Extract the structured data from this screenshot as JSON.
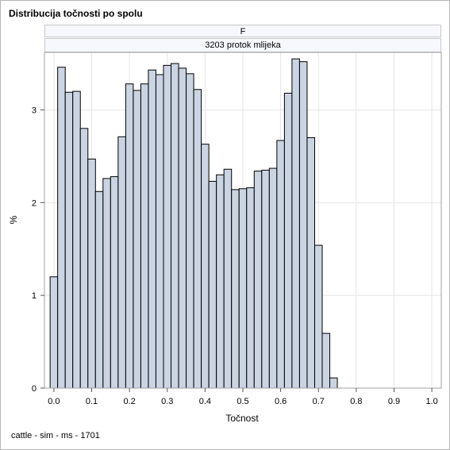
{
  "title": "Distribucija točnosti po spolu",
  "panel": {
    "strip_top": "F",
    "strip_bottom": "3203 protok mlijeka"
  },
  "footnote": "cattle - sim - ms - 1701",
  "colors": {
    "bar_fill": "#cbd4e2",
    "bar_stroke": "#000000",
    "grid": "#e5e5e5",
    "frame": "#b5b5b5"
  },
  "chart_data": {
    "type": "bar",
    "subtype": "histogram",
    "title": "Distribucija točnosti po spolu",
    "xlabel": "Točnost",
    "ylabel": "%",
    "xlim": [
      -0.025,
      1.025
    ],
    "ylim": [
      0,
      3.62
    ],
    "xticks": [
      "0.0",
      "0.1",
      "0.2",
      "0.3",
      "0.4",
      "0.5",
      "0.6",
      "0.7",
      "0.8",
      "0.9",
      "1.0"
    ],
    "yticks": [
      "0",
      "1",
      "2",
      "3"
    ],
    "grid": true,
    "bin_width": 0.02,
    "bins": [
      {
        "x": 0.0,
        "y": 1.2
      },
      {
        "x": 0.02,
        "y": 3.46
      },
      {
        "x": 0.04,
        "y": 3.19
      },
      {
        "x": 0.06,
        "y": 3.2
      },
      {
        "x": 0.08,
        "y": 2.8
      },
      {
        "x": 0.1,
        "y": 2.47
      },
      {
        "x": 0.12,
        "y": 2.12
      },
      {
        "x": 0.14,
        "y": 2.26
      },
      {
        "x": 0.16,
        "y": 2.28
      },
      {
        "x": 0.18,
        "y": 2.71
      },
      {
        "x": 0.2,
        "y": 3.28
      },
      {
        "x": 0.22,
        "y": 3.21
      },
      {
        "x": 0.24,
        "y": 3.28
      },
      {
        "x": 0.26,
        "y": 3.43
      },
      {
        "x": 0.28,
        "y": 3.38
      },
      {
        "x": 0.3,
        "y": 3.48
      },
      {
        "x": 0.32,
        "y": 3.5
      },
      {
        "x": 0.34,
        "y": 3.45
      },
      {
        "x": 0.36,
        "y": 3.39
      },
      {
        "x": 0.38,
        "y": 3.22
      },
      {
        "x": 0.4,
        "y": 2.63
      },
      {
        "x": 0.42,
        "y": 2.23
      },
      {
        "x": 0.44,
        "y": 2.3
      },
      {
        "x": 0.46,
        "y": 2.36
      },
      {
        "x": 0.48,
        "y": 2.14
      },
      {
        "x": 0.5,
        "y": 2.15
      },
      {
        "x": 0.52,
        "y": 2.16
      },
      {
        "x": 0.54,
        "y": 2.34
      },
      {
        "x": 0.56,
        "y": 2.35
      },
      {
        "x": 0.58,
        "y": 2.37
      },
      {
        "x": 0.6,
        "y": 2.67
      },
      {
        "x": 0.62,
        "y": 3.18
      },
      {
        "x": 0.64,
        "y": 3.55
      },
      {
        "x": 0.66,
        "y": 3.52
      },
      {
        "x": 0.68,
        "y": 2.7
      },
      {
        "x": 0.7,
        "y": 1.54
      },
      {
        "x": 0.72,
        "y": 0.59
      },
      {
        "x": 0.74,
        "y": 0.11
      }
    ]
  }
}
